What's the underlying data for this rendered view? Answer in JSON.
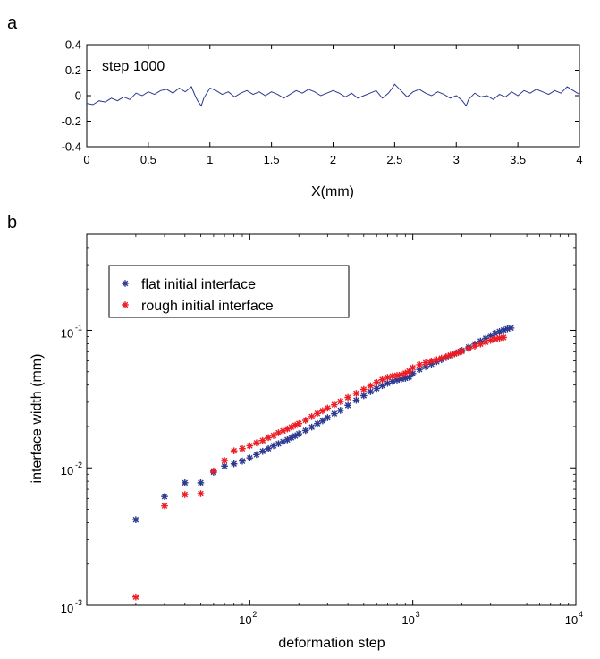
{
  "chart_data": [
    {
      "panel_label": "a",
      "type": "line",
      "annotation": "step 1000",
      "xlabel": "X(mm)",
      "ylabel": "",
      "xlim": [
        0,
        4
      ],
      "ylim": [
        -0.4,
        0.4
      ],
      "xticks": [
        "0",
        "0.5",
        "1",
        "1.5",
        "2",
        "2.5",
        "3",
        "3.5",
        "4"
      ],
      "yticks": [
        "0.4",
        "0.2",
        "0",
        "-0.2",
        "-0.4"
      ],
      "grid": false,
      "line_color": "#2b3990",
      "series": [
        {
          "x": [
            0,
            0.05,
            0.1,
            0.15,
            0.2,
            0.25,
            0.3,
            0.35,
            0.4,
            0.45,
            0.5,
            0.55,
            0.6,
            0.65,
            0.7,
            0.75,
            0.8,
            0.85,
            0.88,
            0.9,
            0.93,
            0.95,
            1.0,
            1.05,
            1.1,
            1.15,
            1.2,
            1.25,
            1.3,
            1.35,
            1.4,
            1.45,
            1.5,
            1.55,
            1.6,
            1.65,
            1.7,
            1.75,
            1.8,
            1.85,
            1.9,
            1.95,
            2.0,
            2.05,
            2.1,
            2.15,
            2.2,
            2.25,
            2.3,
            2.35,
            2.4,
            2.45,
            2.48,
            2.5,
            2.55,
            2.6,
            2.65,
            2.7,
            2.75,
            2.8,
            2.85,
            2.9,
            2.95,
            3.0,
            3.05,
            3.08,
            3.1,
            3.15,
            3.2,
            3.25,
            3.3,
            3.35,
            3.4,
            3.45,
            3.5,
            3.55,
            3.6,
            3.65,
            3.7,
            3.75,
            3.8,
            3.85,
            3.9,
            3.95,
            4.0
          ],
          "y": [
            -0.06,
            -0.07,
            -0.04,
            -0.05,
            -0.02,
            -0.04,
            -0.01,
            -0.03,
            0.02,
            0.0,
            0.03,
            0.01,
            0.04,
            0.05,
            0.02,
            0.06,
            0.03,
            0.07,
            0.0,
            -0.04,
            -0.08,
            -0.02,
            0.06,
            0.04,
            0.01,
            0.03,
            -0.01,
            0.02,
            0.04,
            0.01,
            0.03,
            0.0,
            0.03,
            0.01,
            -0.02,
            0.01,
            0.04,
            0.02,
            0.05,
            0.03,
            0.0,
            0.02,
            0.04,
            0.02,
            -0.01,
            0.02,
            -0.02,
            0.0,
            0.02,
            0.04,
            -0.02,
            0.02,
            0.06,
            0.09,
            0.04,
            -0.01,
            0.03,
            0.05,
            0.02,
            0.0,
            0.03,
            0.01,
            -0.02,
            0.0,
            -0.04,
            -0.08,
            -0.03,
            0.02,
            -0.01,
            0.0,
            -0.03,
            0.01,
            -0.01,
            0.03,
            0.0,
            0.04,
            0.02,
            0.05,
            0.03,
            0.01,
            0.04,
            0.02,
            0.07,
            0.04,
            0.01
          ]
        }
      ]
    },
    {
      "panel_label": "b",
      "type": "scatter",
      "xlabel": "deformation step",
      "ylabel": "interface width (mm)",
      "xscale": "log",
      "yscale": "log",
      "xlim": [
        10,
        10000
      ],
      "ylim": [
        0.001,
        0.5
      ],
      "xticks": [
        {
          "base": "10",
          "exp": "2",
          "value": 100
        },
        {
          "base": "10",
          "exp": "3",
          "value": 1000
        },
        {
          "base": "10",
          "exp": "4",
          "value": 10000
        }
      ],
      "yticks": [
        {
          "base": "10",
          "exp": "-3",
          "value": 0.001
        },
        {
          "base": "10",
          "exp": "-2",
          "value": 0.01
        },
        {
          "base": "10",
          "exp": "-1",
          "value": 0.1
        }
      ],
      "grid": false,
      "legend_position": "top-left",
      "series": [
        {
          "name": "flat initial interface",
          "color": "#2b3990",
          "marker": "*",
          "x": [
            20,
            30,
            40,
            50,
            60,
            70,
            80,
            90,
            100,
            110,
            120,
            130,
            140,
            150,
            160,
            170,
            180,
            190,
            200,
            220,
            240,
            260,
            280,
            300,
            330,
            360,
            400,
            450,
            500,
            550,
            600,
            650,
            700,
            750,
            800,
            850,
            900,
            950,
            1000,
            1100,
            1200,
            1300,
            1400,
            1500,
            1600,
            1700,
            1800,
            1900,
            2000,
            2200,
            2400,
            2600,
            2800,
            3000,
            3200,
            3400,
            3600,
            3800,
            4000
          ],
          "y": [
            0.0042,
            0.0062,
            0.0078,
            0.0078,
            0.0093,
            0.0103,
            0.0107,
            0.0112,
            0.0118,
            0.0125,
            0.0132,
            0.0138,
            0.0145,
            0.015,
            0.0155,
            0.016,
            0.0166,
            0.0171,
            0.0177,
            0.0187,
            0.0198,
            0.021,
            0.022,
            0.0232,
            0.0248,
            0.0262,
            0.0285,
            0.031,
            0.0335,
            0.0358,
            0.0378,
            0.0396,
            0.0412,
            0.0425,
            0.0435,
            0.0442,
            0.0448,
            0.0458,
            0.0485,
            0.052,
            0.0545,
            0.0568,
            0.0592,
            0.0612,
            0.0635,
            0.0655,
            0.0675,
            0.0695,
            0.0715,
            0.0755,
            0.0795,
            0.0835,
            0.0875,
            0.0915,
            0.095,
            0.098,
            0.1005,
            0.1025,
            0.104
          ]
        },
        {
          "name": "rough initial interface",
          "color": "#ed1c24",
          "marker": "*",
          "x": [
            20,
            30,
            40,
            50,
            60,
            70,
            80,
            90,
            100,
            110,
            120,
            130,
            140,
            150,
            160,
            170,
            180,
            190,
            200,
            220,
            240,
            260,
            280,
            300,
            330,
            360,
            400,
            450,
            500,
            550,
            600,
            650,
            700,
            750,
            800,
            850,
            900,
            950,
            1000,
            1100,
            1200,
            1300,
            1400,
            1500,
            1600,
            1700,
            1800,
            1900,
            2000,
            2200,
            2400,
            2600,
            2800,
            3000,
            3200,
            3400,
            3600
          ],
          "y": [
            0.00115,
            0.0053,
            0.0064,
            0.0065,
            0.0095,
            0.0113,
            0.0133,
            0.0138,
            0.0145,
            0.0152,
            0.0158,
            0.0166,
            0.0172,
            0.018,
            0.0186,
            0.0192,
            0.0198,
            0.0204,
            0.021,
            0.0222,
            0.0236,
            0.0249,
            0.026,
            0.0272,
            0.0288,
            0.0304,
            0.0325,
            0.0348,
            0.0372,
            0.0395,
            0.0418,
            0.0438,
            0.0455,
            0.0465,
            0.047,
            0.0476,
            0.0488,
            0.0505,
            0.0535,
            0.0562,
            0.0582,
            0.0598,
            0.0612,
            0.0628,
            0.0645,
            0.066,
            0.0675,
            0.069,
            0.0705,
            0.0738,
            0.0768,
            0.0795,
            0.082,
            0.0845,
            0.0865,
            0.0878,
            0.0888
          ]
        }
      ]
    }
  ]
}
